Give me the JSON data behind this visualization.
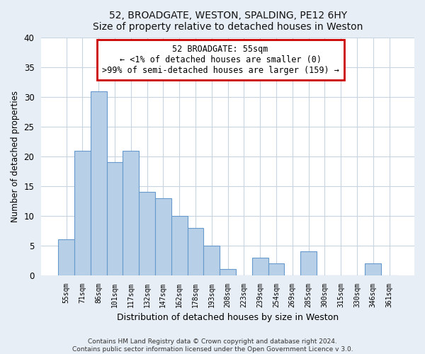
{
  "title": "52, BROADGATE, WESTON, SPALDING, PE12 6HY",
  "subtitle": "Size of property relative to detached houses in Weston",
  "xlabel": "Distribution of detached houses by size in Weston",
  "ylabel": "Number of detached properties",
  "bar_labels": [
    "55sqm",
    "71sqm",
    "86sqm",
    "101sqm",
    "117sqm",
    "132sqm",
    "147sqm",
    "162sqm",
    "178sqm",
    "193sqm",
    "208sqm",
    "223sqm",
    "239sqm",
    "254sqm",
    "269sqm",
    "285sqm",
    "300sqm",
    "315sqm",
    "330sqm",
    "346sqm",
    "361sqm"
  ],
  "bar_values": [
    6,
    21,
    31,
    19,
    21,
    14,
    13,
    10,
    8,
    5,
    1,
    0,
    3,
    2,
    0,
    4,
    0,
    0,
    0,
    2,
    0
  ],
  "bar_color": "#b8cfe8",
  "bar_edge_color": "#6699cc",
  "annotation_box_color": "#ffffff",
  "annotation_border_color": "#cc0000",
  "annotation_line1": "52 BROADGATE: 55sqm",
  "annotation_line2": "← <1% of detached houses are smaller (0)",
  "annotation_line3": ">99% of semi-detached houses are larger (159) →",
  "ylim": [
    0,
    40
  ],
  "yticks": [
    0,
    5,
    10,
    15,
    20,
    25,
    30,
    35,
    40
  ],
  "footnote1": "Contains HM Land Registry data © Crown copyright and database right 2024.",
  "footnote2": "Contains public sector information licensed under the Open Government Licence v 3.0.",
  "bg_color": "#e8eef5",
  "plot_bg_color": "#ffffff",
  "grid_color": "#c8d4e0"
}
